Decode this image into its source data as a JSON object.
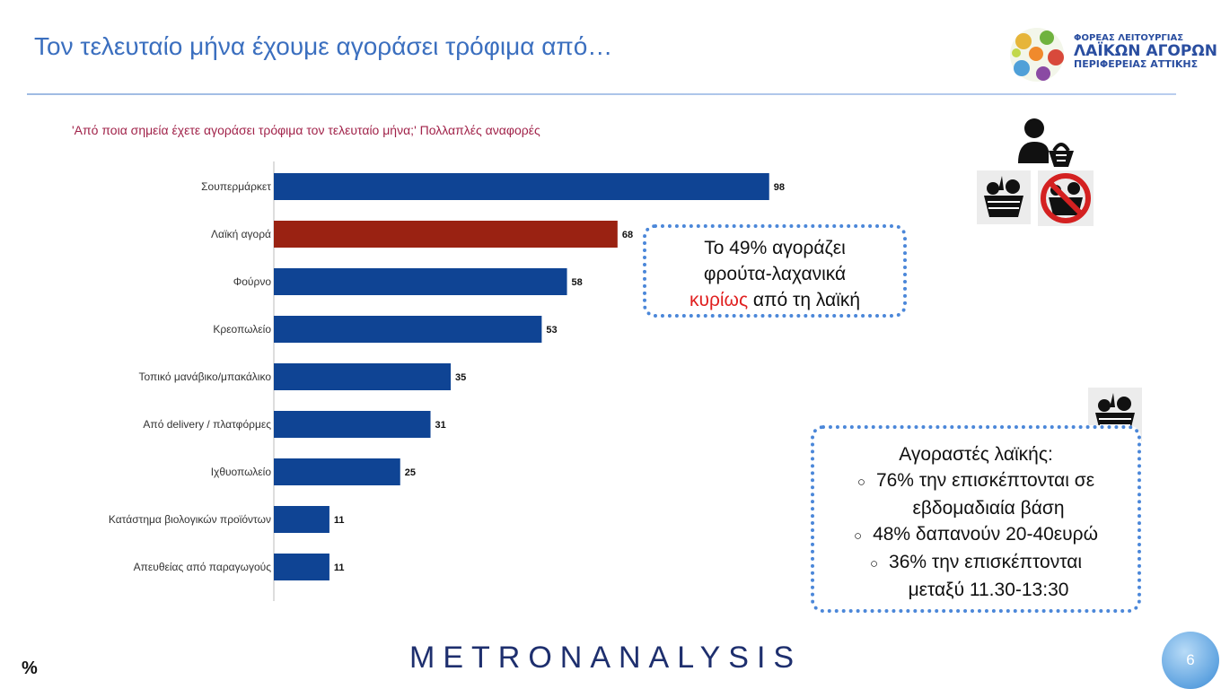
{
  "header": {
    "title": "Τον τελευταίο μήνα έχουμε αγοράσει τρόφιμα από…",
    "logo": {
      "line1": "ΦΟΡΕΑΣ ΛΕΙΤΟΥΡΓΙΑΣ",
      "line2": "ΛΑΪΚΩΝ ΑΓΟΡΩΝ",
      "line3": "ΠΕΡΙΦΕΡΕΙΑΣ ΑΤΤΙΚΗΣ"
    }
  },
  "question": "'Από ποια σημεία έχετε αγοράσει τρόφιμα τον τελευταίο μήνα;' Πολλαπλές αναφορές",
  "chart_data": {
    "type": "bar",
    "orientation": "horizontal",
    "categories": [
      "Σουπερμάρκετ",
      "Λαϊκή αγορά",
      "Φούρνο",
      "Κρεοπωλείο",
      "Τοπικό μανάβικο/μπακάλικο",
      "Από delivery / πλατφόρμες",
      "Ιχθυοπωλείο",
      "Κατάστημα βιολογικών προϊόντων",
      "Απευθείας από παραγωγούς"
    ],
    "values": [
      98,
      68,
      58,
      53,
      35,
      31,
      25,
      11,
      11
    ],
    "xlim": [
      0,
      100
    ],
    "unit": "%",
    "colors": {
      "default": "#0f4494",
      "highlight": "#9a2212"
    },
    "highlight_index": 1,
    "grid": false,
    "legend": "none"
  },
  "callouts": {
    "primary": {
      "line1": "Το 49% αγοράζει",
      "line2": "φρούτα-λαχανικά",
      "emphasis": "κυρίως",
      "line3_rest": " από τη λαϊκή"
    },
    "buyers": {
      "heading": "Αγοραστές λαϊκής:",
      "bullets": [
        [
          "76% την επισκέπτονται σε",
          "εβδομαδιαία βάση"
        ],
        [
          "48% δαπανούν 20-40ευρώ"
        ],
        [
          "36% την επισκέπτονται",
          "μεταξύ 11.30-13:30"
        ]
      ]
    }
  },
  "icons": [
    "shopper-basket-icon",
    "vegetable-basket-icon",
    "no-vegetable-basket-icon",
    "vegetable-basket-icon"
  ],
  "footer": {
    "brand": "METRONANALYSIS",
    "unit_label": "%",
    "page_number": "6"
  }
}
